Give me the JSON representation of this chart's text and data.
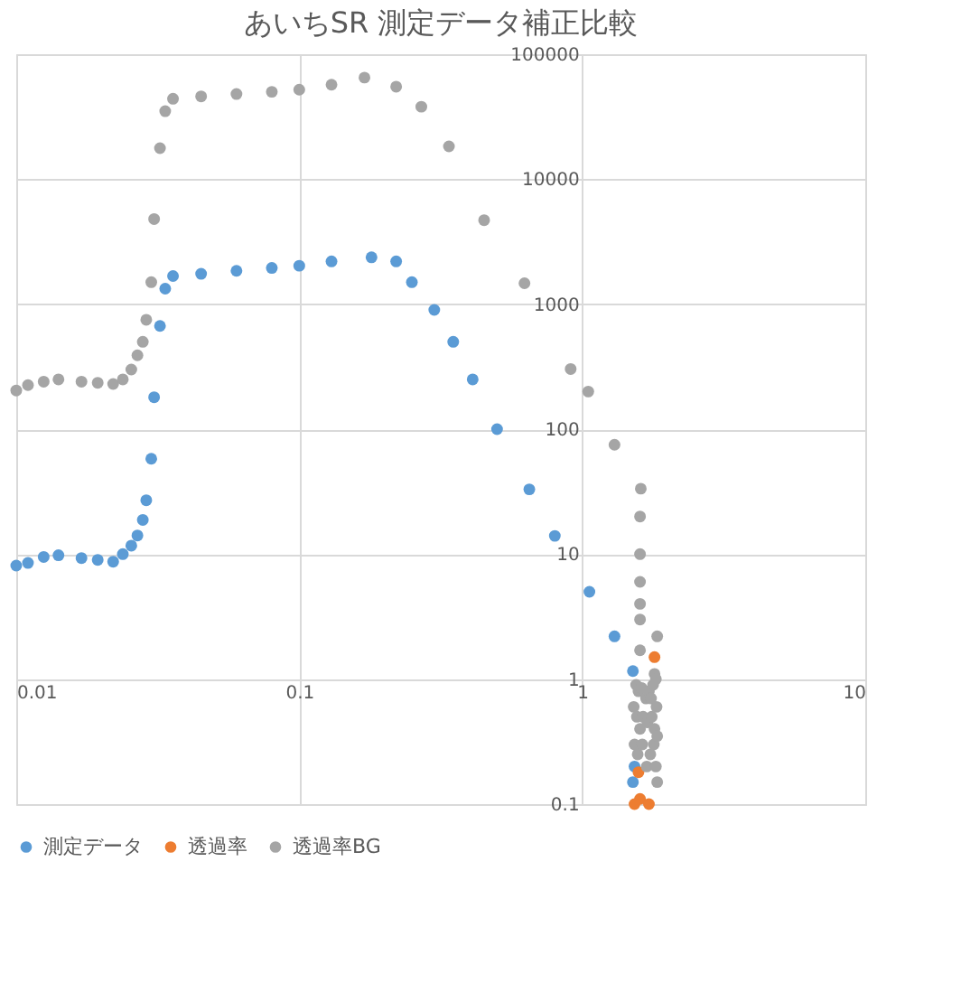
{
  "chart_data": {
    "type": "scatter",
    "title": "あいちSR  測定データ補正比較",
    "log": "xy",
    "grid": true,
    "legend": "bottom",
    "marker": "circle",
    "xlim": [
      0.01,
      10
    ],
    "xticks": [
      0.01,
      0.1,
      1,
      10
    ],
    "ylim": [
      0.1,
      100000
    ],
    "yticks": [
      0.1,
      1,
      10,
      100,
      1000,
      10000,
      100000
    ],
    "series": [
      {
        "name": "測定データ",
        "color": "#5b9bd5",
        "x": [
          0.01,
          0.011,
          0.0125,
          0.0141,
          0.017,
          0.0194,
          0.022,
          0.0238,
          0.0255,
          0.0268,
          0.028,
          0.0288,
          0.03,
          0.0307,
          0.0322,
          0.0336,
          0.0358,
          0.045,
          0.06,
          0.08,
          0.1,
          0.13,
          0.18,
          0.22,
          0.25,
          0.3,
          0.35,
          0.41,
          0.5,
          0.65,
          0.8,
          1.06,
          1.3,
          1.51,
          1.51,
          1.53
        ],
        "values": [
          8.1,
          8.5,
          9.5,
          9.8,
          9.3,
          9.0,
          8.7,
          10,
          11.7,
          14.1,
          18.8,
          27,
          58,
          180,
          670,
          1330,
          1680,
          1750,
          1850,
          1950,
          2030,
          2200,
          2370,
          2200,
          1500,
          900,
          500,
          250,
          100,
          33,
          14,
          5,
          2.2,
          1.16,
          0.15,
          0.2
        ]
      },
      {
        "name": "透過率",
        "color": "#ed7d31",
        "x": [
          1.8,
          1.58,
          1.6,
          1.72,
          1.53
        ],
        "values": [
          1.5,
          0.18,
          0.11,
          0.1,
          0.1
        ]
      },
      {
        "name": "透過率BG",
        "color": "#a5a5a5",
        "x": [
          0.01,
          0.011,
          0.0125,
          0.0141,
          0.017,
          0.0194,
          0.022,
          0.0238,
          0.0255,
          0.0268,
          0.028,
          0.0288,
          0.03,
          0.0307,
          0.0322,
          0.0336,
          0.0358,
          0.045,
          0.06,
          0.08,
          0.1,
          0.13,
          0.17,
          0.22,
          0.27,
          0.338,
          0.45,
          0.625,
          0.91,
          1.05,
          1.3,
          1.61,
          1.6,
          1.6,
          1.6,
          1.6,
          1.6,
          1.6,
          1.55,
          1.58,
          1.62,
          1.68,
          1.72,
          1.75,
          1.78,
          1.8,
          1.82,
          1.84,
          1.56,
          1.6,
          1.64,
          1.7,
          1.76,
          1.8,
          1.83,
          1.53,
          1.57,
          1.63,
          1.69,
          1.74,
          1.79,
          1.82,
          1.84,
          1.84,
          1.52
        ],
        "values": [
          204,
          225,
          240,
          250,
          240,
          235,
          230,
          250,
          300,
          390,
          500,
          750,
          1500,
          4800,
          17700,
          35000,
          44000,
          46000,
          48000,
          50000,
          52000,
          57000,
          65000,
          55000,
          38000,
          18300,
          4700,
          1470,
          303,
          200,
          75,
          33.4,
          20,
          10,
          6,
          4,
          3,
          1.7,
          0.9,
          0.8,
          0.85,
          0.7,
          0.8,
          0.7,
          0.9,
          1.1,
          1.0,
          2.2,
          0.5,
          0.4,
          0.5,
          0.45,
          0.5,
          0.4,
          0.6,
          0.3,
          0.25,
          0.3,
          0.2,
          0.25,
          0.3,
          0.2,
          0.35,
          0.15,
          0.6
        ]
      }
    ]
  }
}
